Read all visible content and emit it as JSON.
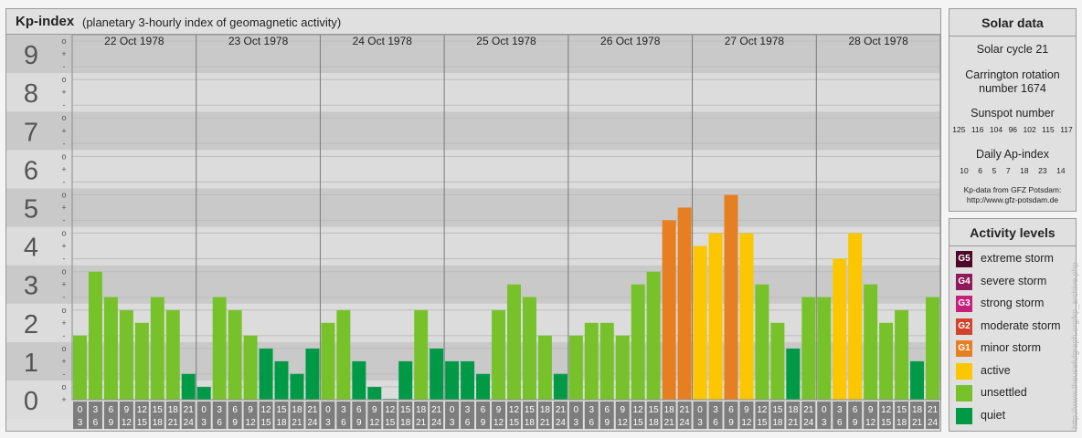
{
  "chart_title": "Kp-index",
  "chart_subtitle": "(planetary 3-hourly index of geomagnetic activity)",
  "level_labels": [
    "0",
    "1",
    "2",
    "3",
    "4",
    "5",
    "6",
    "7",
    "8",
    "9"
  ],
  "sub_symbols": [
    "+",
    "o",
    "-"
  ],
  "hour_starts": [
    "0",
    "3",
    "6",
    "9",
    "12",
    "15",
    "18",
    "21"
  ],
  "hour_ends": [
    "3",
    "6",
    "9",
    "12",
    "15",
    "18",
    "21",
    "24"
  ],
  "colors": {
    "quiet": "#009a47",
    "unsettled": "#77c22a",
    "active": "#fcc600",
    "minor": "#e67e22",
    "moderate": "#d1432b",
    "strong": "#c7207a",
    "severe": "#8e1a5b",
    "extreme": "#4e0828"
  },
  "solar": {
    "title": "Solar data",
    "cycle": "Solar cycle 21",
    "carrington_line1": "Carrington rotation",
    "carrington_line2": "number 1674",
    "sunspot_title": "Sunspot number",
    "sunspot_values": [
      "125",
      "116",
      "104",
      "96",
      "102",
      "115",
      "117"
    ],
    "ap_title": "Daily Ap-index",
    "ap_values": [
      "10",
      "6",
      "5",
      "7",
      "18",
      "23",
      "14"
    ],
    "source_line1": "Kp-data from GFZ Potsdam:",
    "source_line2": "http://www.gfz-potsdam.de"
  },
  "activity": {
    "title": "Activity levels",
    "levels": [
      {
        "code": "G5",
        "label": "extreme storm",
        "color": "#4e0828"
      },
      {
        "code": "G4",
        "label": "severe storm",
        "color": "#8e1a5b"
      },
      {
        "code": "G3",
        "label": "strong storm",
        "color": "#c7207a"
      },
      {
        "code": "G2",
        "label": "moderate storm",
        "color": "#d1432b"
      },
      {
        "code": "G1",
        "label": "minor storm",
        "color": "#e67e22"
      },
      {
        "code": "",
        "label": "active",
        "color": "#fcc600"
      },
      {
        "code": "",
        "label": "unsettled",
        "color": "#77c22a"
      },
      {
        "code": "",
        "label": "quiet",
        "color": "#009a47"
      }
    ]
  },
  "watermark": "http://www.theusefulgraph.org/kp_archive.php",
  "chart_data": {
    "type": "bar",
    "title": "Kp-index",
    "subtitle": "(planetary 3-hourly index of geomagnetic activity)",
    "ylim": [
      0,
      9
    ],
    "yticks": [
      0,
      1,
      2,
      3,
      4,
      5,
      6,
      7,
      8,
      9
    ],
    "days": [
      {
        "date": "22 Oct 1978",
        "values": [
          1.67,
          3.33,
          2.67,
          2.33,
          2.0,
          2.67,
          2.33,
          0.67
        ]
      },
      {
        "date": "23 Oct 1978",
        "values": [
          0.33,
          2.67,
          2.33,
          1.67,
          1.33,
          1.0,
          0.67,
          1.33
        ]
      },
      {
        "date": "24 Oct 1978",
        "values": [
          2.0,
          2.33,
          1.0,
          0.33,
          0.0,
          1.0,
          2.33,
          1.33
        ]
      },
      {
        "date": "25 Oct 1978",
        "values": [
          1.0,
          1.0,
          0.67,
          2.33,
          3.0,
          2.67,
          1.67,
          0.67
        ]
      },
      {
        "date": "26 Oct 1978",
        "values": [
          1.67,
          2.0,
          2.0,
          1.67,
          3.0,
          3.33,
          4.67,
          5.0
        ]
      },
      {
        "date": "27 Oct 1978",
        "values": [
          4.0,
          4.33,
          5.33,
          4.33,
          3.0,
          2.0,
          1.33,
          2.67
        ]
      },
      {
        "date": "28 Oct 1978",
        "values": [
          2.67,
          3.67,
          4.33,
          3.0,
          2.0,
          2.33,
          1.0,
          2.67
        ]
      }
    ]
  }
}
